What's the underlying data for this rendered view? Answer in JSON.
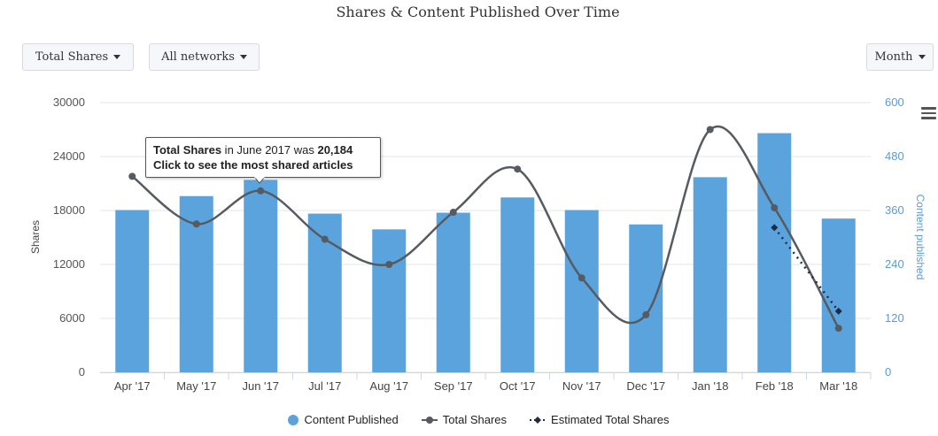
{
  "title": "Shares & Content Published Over Time",
  "controls": {
    "metric_label": "Total Shares",
    "network_label": "All networks",
    "period_label": "Month"
  },
  "chart_data": {
    "type": "bar",
    "categories": [
      "Apr '17",
      "May '17",
      "Jun '17",
      "Jul '17",
      "Aug '17",
      "Sep '17",
      "Oct '17",
      "Nov '17",
      "Dec '17",
      "Jan '18",
      "Feb '18",
      "Mar '18"
    ],
    "series": [
      {
        "name": "Content Published",
        "type": "bar",
        "axis": "right",
        "color": "#5ba3dc",
        "values": [
          361,
          392,
          428,
          353,
          318,
          355,
          389,
          361,
          329,
          434,
          532,
          342
        ]
      },
      {
        "name": "Total Shares",
        "type": "line",
        "axis": "left",
        "color": "#555b61",
        "values": [
          21800,
          16500,
          20184,
          14800,
          12000,
          17800,
          22600,
          10500,
          6400,
          27000,
          18300,
          4900
        ]
      },
      {
        "name": "Estimated Total Shares",
        "type": "line",
        "axis": "left",
        "dashed": true,
        "color": "#1f2a44",
        "points": [
          {
            "x": "Feb '18",
            "y": 16100
          },
          {
            "x": "Mar '18",
            "y": 6800
          }
        ]
      }
    ],
    "ylabel": "Shares",
    "ylabel_right": "Content published",
    "ylim": [
      0,
      30000
    ],
    "ylim_right": [
      0,
      600
    ],
    "yticks": [
      "0",
      "6000",
      "12000",
      "18000",
      "24000",
      "30000"
    ],
    "yticks_right": [
      "0",
      "120",
      "240",
      "360",
      "480",
      "600"
    ],
    "grid": true,
    "legend": "bottom"
  },
  "tooltip": {
    "series": "Total Shares",
    "middle": " in June 2017 was ",
    "value": "20,184",
    "line2": "Click to see the most shared articles"
  }
}
